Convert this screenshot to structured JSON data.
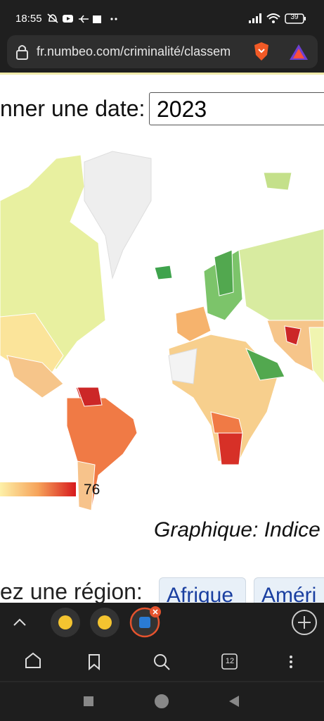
{
  "status_bar": {
    "time": "18:55",
    "battery": "39"
  },
  "address_bar": {
    "url": "fr.numbeo.com/criminalité/classem"
  },
  "content": {
    "date_label": "nner une date:",
    "date_value": "2023",
    "legend_max": "76",
    "caption": "Graphique: Indice",
    "region_label": "ez une région:",
    "region_buttons": [
      "Afrique",
      "Améri"
    ]
  },
  "browser_toolbar": {
    "tab_count": "12"
  }
}
